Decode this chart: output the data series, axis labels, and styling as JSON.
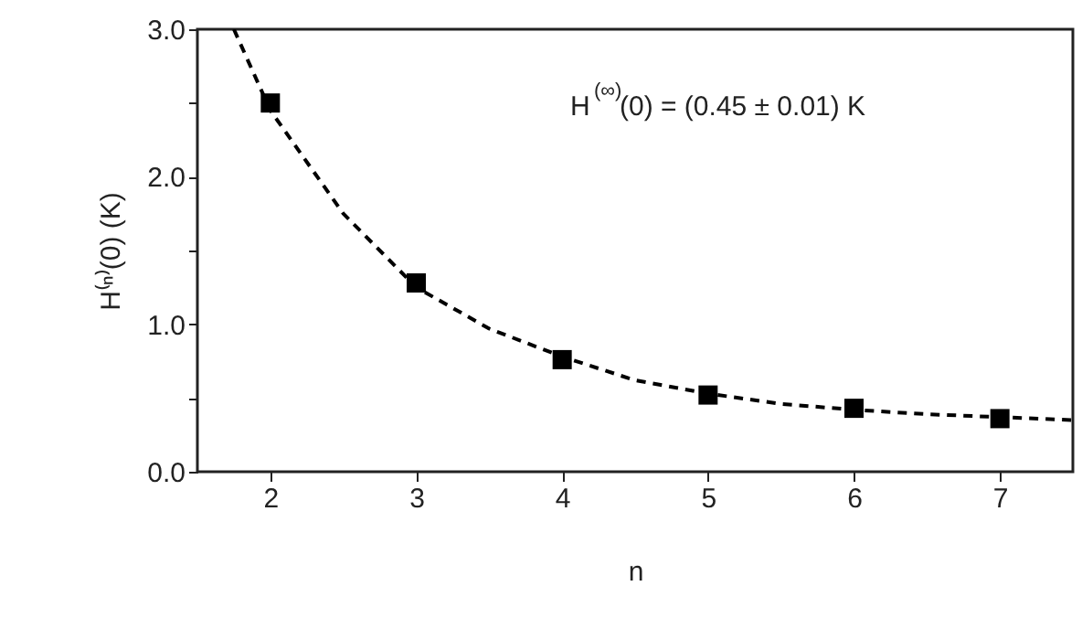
{
  "chart_data": {
    "type": "scatter",
    "xlabel": "n",
    "ylabel": "H⁽ⁿ⁾(0) (K)",
    "annotations": [
      "H$^{(∞)}$(0) = (0.45 ± 0.01) K"
    ],
    "xlim": [
      1.5,
      7.5
    ],
    "xticks": [
      2,
      3,
      4,
      5,
      6,
      7
    ],
    "ylim": [
      0,
      3
    ],
    "yticks": [
      {
        "value": 0,
        "label": "0.0"
      },
      {
        "value": 0.5,
        "label": null
      },
      {
        "value": 1,
        "label": "1.0"
      },
      {
        "value": 1.5,
        "label": null
      },
      {
        "value": 2,
        "label": "2.0"
      },
      {
        "value": 2.5,
        "label": null
      },
      {
        "value": 3,
        "label": "3.0"
      }
    ],
    "grid": false,
    "series": [
      {
        "color": "#000000",
        "marker": "square",
        "x": [
          2,
          3,
          4,
          5,
          6,
          7
        ],
        "values": [
          2.5,
          1.28,
          0.76,
          0.52,
          0.43,
          0.36
        ]
      },
      {
        "type": "line",
        "color": "#000000",
        "marker": "none",
        "line_style": "dashed",
        "x": [
          1.75,
          2,
          2.5,
          3,
          3.5,
          4,
          4.5,
          5,
          5.5,
          6,
          6.5,
          7,
          7.5
        ],
        "values": [
          3.0,
          2.45,
          1.75,
          1.25,
          0.97,
          0.78,
          0.62,
          0.53,
          0.46,
          0.42,
          0.39,
          0.37,
          0.35
        ]
      }
    ]
  }
}
